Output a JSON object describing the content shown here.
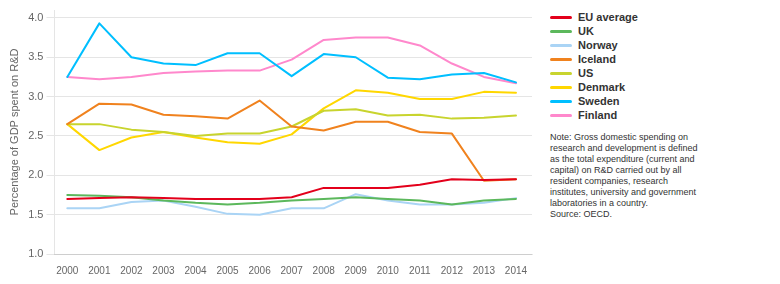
{
  "chart_data": {
    "type": "line",
    "x": [
      2000,
      2001,
      2002,
      2003,
      2004,
      2005,
      2006,
      2007,
      2008,
      2009,
      2010,
      2011,
      2012,
      2013,
      2014
    ],
    "series": [
      {
        "name": "EU average",
        "color": "#e3001b",
        "values": [
          1.7,
          1.71,
          1.72,
          1.71,
          1.7,
          1.7,
          1.7,
          1.72,
          1.84,
          1.84,
          1.84,
          1.88,
          1.95,
          1.94,
          1.95
        ]
      },
      {
        "name": "UK",
        "color": "#5cb85c",
        "values": [
          1.75,
          1.74,
          1.72,
          1.68,
          1.65,
          1.63,
          1.65,
          1.68,
          1.7,
          1.72,
          1.7,
          1.68,
          1.63,
          1.68,
          1.7
        ]
      },
      {
        "name": "Norway",
        "color": "#aad4f5",
        "values": [
          1.58,
          1.58,
          1.66,
          1.68,
          1.6,
          1.51,
          1.5,
          1.58,
          1.58,
          1.76,
          1.68,
          1.63,
          1.63,
          1.65,
          1.71
        ]
      },
      {
        "name": "Iceland",
        "color": "#f0821e",
        "values": [
          2.65,
          2.91,
          2.9,
          2.77,
          2.75,
          2.72,
          2.95,
          2.62,
          2.57,
          2.68,
          2.68,
          2.55,
          2.53,
          1.93,
          1.95
        ]
      },
      {
        "name": "US",
        "color": "#c8d42e",
        "values": [
          2.65,
          2.65,
          2.58,
          2.55,
          2.5,
          2.53,
          2.53,
          2.62,
          2.82,
          2.84,
          2.76,
          2.77,
          2.72,
          2.73,
          2.76
        ]
      },
      {
        "name": "Denmark",
        "color": "#ffd700",
        "values": [
          2.65,
          2.32,
          2.48,
          2.55,
          2.48,
          2.42,
          2.4,
          2.52,
          2.85,
          3.08,
          3.05,
          2.97,
          2.97,
          3.06,
          3.05
        ]
      },
      {
        "name": "Sweden",
        "color": "#00bfff",
        "values": [
          3.25,
          3.93,
          3.5,
          3.42,
          3.4,
          3.55,
          3.55,
          3.26,
          3.54,
          3.5,
          3.24,
          3.22,
          3.28,
          3.3,
          3.18
        ]
      },
      {
        "name": "Finland",
        "color": "#ff88cc",
        "values": [
          3.25,
          3.22,
          3.25,
          3.3,
          3.32,
          3.33,
          3.33,
          3.47,
          3.72,
          3.75,
          3.75,
          3.65,
          3.42,
          3.25,
          3.17
        ]
      }
    ],
    "ylabel": "Percentage of GDP spent on R&D",
    "xlim": [
      1999.6,
      2014.5
    ],
    "xticks": [
      2000,
      2001,
      2002,
      2003,
      2004,
      2005,
      2006,
      2007,
      2008,
      2009,
      2010,
      2011,
      2012,
      2013,
      2014
    ],
    "ylim": [
      1.0,
      4.1
    ],
    "yticks": [
      {
        "value": 1.0,
        "label": "1.0"
      },
      1.5,
      {
        "value": 2.0,
        "label": "2.0"
      },
      2.5,
      {
        "value": 3.0,
        "label": "3.0"
      },
      3.5,
      {
        "value": 4.0,
        "label": "4.0"
      }
    ],
    "grid": true,
    "legend": "right",
    "annotations": [
      "Note: Gross domestic spending on\nresearch and development is defined\nas the total expenditure (current and\ncapital) on R&D carried out by all\nresident companies, research\ninstitutes, university and government\nlaboratories in a country.\nSource: OECD."
    ]
  }
}
